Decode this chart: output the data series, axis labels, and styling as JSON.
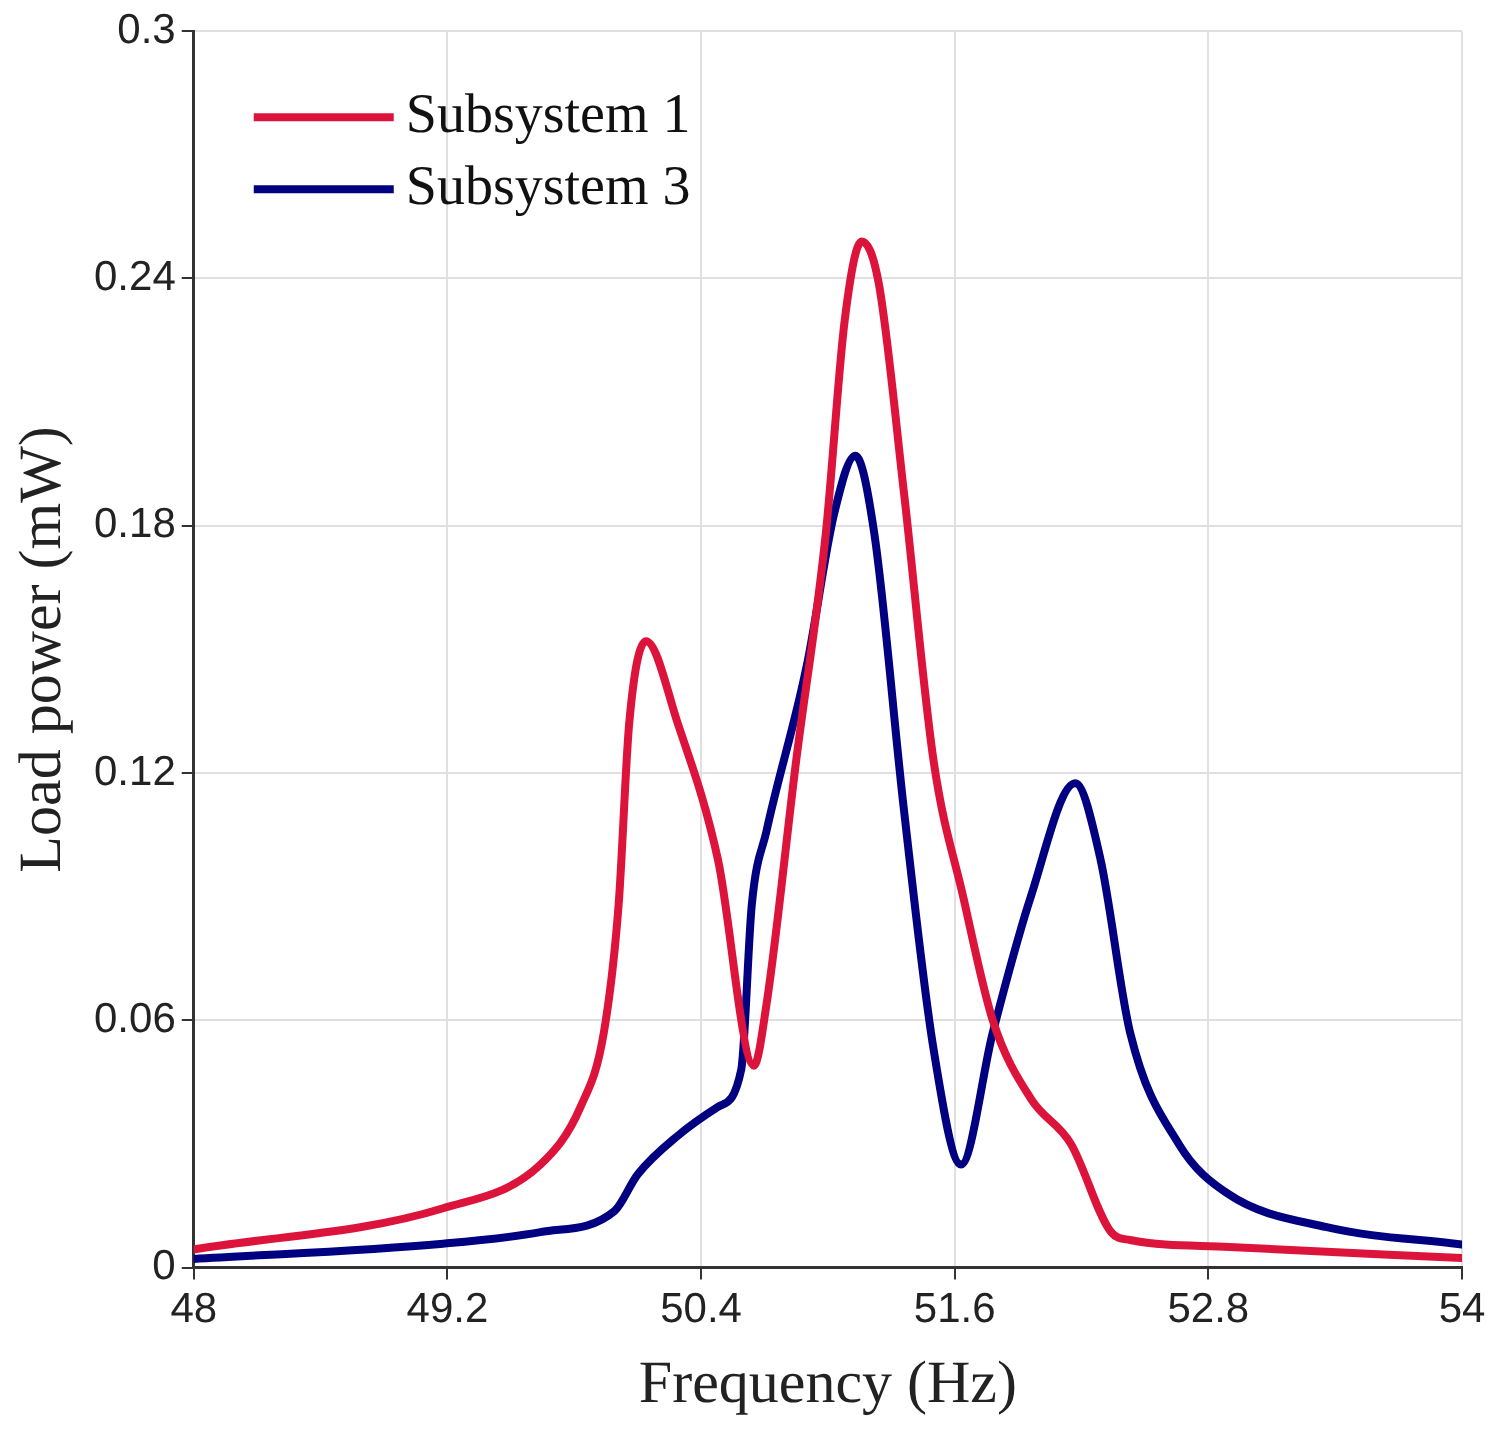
{
  "chart_data": {
    "type": "line",
    "xlabel": "Frequency (Hz)",
    "ylabel": "Load power (mW)",
    "xlim": [
      48,
      54
    ],
    "xticks": [
      48,
      49.2,
      50.4,
      51.6,
      52.8,
      54
    ],
    "ylim": [
      0,
      0.3
    ],
    "yticks": [
      0,
      0.06,
      0.12,
      0.18,
      0.24,
      0.3
    ],
    "grid": true,
    "legend": "top left",
    "marker": "none",
    "line_style": "solid",
    "series": [
      {
        "name": "Subsystem 1",
        "color": "#dc143c",
        "x": [
          48,
          49.18,
          49.64,
          49.83,
          49.94,
          50.01,
          50.06,
          50.14,
          50.29,
          50.48,
          50.65,
          50.71,
          50.85,
          50.99,
          51.08,
          51.16,
          51.24,
          51.36,
          51.5,
          51.64,
          51.78,
          51.96,
          52.15,
          52.34,
          52.43,
          52.9,
          54
        ],
        "values": [
          0.0044,
          0.0144,
          0.025,
          0.039,
          0.057,
          0.088,
          0.132,
          0.152,
          0.132,
          0.099,
          0.049,
          0.064,
          0.123,
          0.178,
          0.23,
          0.249,
          0.239,
          0.188,
          0.123,
          0.09,
          0.06,
          0.041,
          0.03,
          0.0086,
          0.0067,
          0.005,
          0.0023
        ]
      },
      {
        "name": "Subsystem 3",
        "color": "#000080",
        "x": [
          48,
          49.18,
          49.64,
          49.99,
          50.1,
          50.29,
          50.48,
          50.59,
          50.64,
          50.71,
          50.9,
          51.03,
          51.13,
          51.22,
          51.36,
          51.5,
          51.63,
          51.78,
          51.96,
          52.17,
          52.29,
          52.43,
          52.66,
          52.89,
          53.36,
          54
        ],
        "values": [
          0.0021,
          0.0058,
          0.0086,
          0.0137,
          0.0226,
          0.032,
          0.039,
          0.048,
          0.088,
          0.106,
          0.146,
          0.183,
          0.197,
          0.178,
          0.111,
          0.053,
          0.025,
          0.057,
          0.09,
          0.1175,
          0.099,
          0.057,
          0.03,
          0.018,
          0.0098,
          0.0056
        ]
      }
    ]
  }
}
